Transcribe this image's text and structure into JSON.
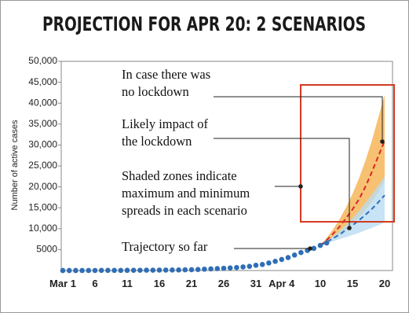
{
  "chart_data": {
    "type": "line",
    "title": "PROJECTION FOR APR 20: 2 SCENARIOS",
    "y_label": "Number of active cases",
    "categories": [
      "Mar 1",
      null,
      null,
      null,
      null,
      "6",
      null,
      null,
      null,
      null,
      "11",
      null,
      null,
      null,
      null,
      "16",
      null,
      null,
      null,
      null,
      "21",
      null,
      null,
      null,
      null,
      "26",
      null,
      null,
      null,
      null,
      "31",
      null,
      null,
      null,
      "Apr 4",
      null,
      null,
      null,
      null,
      null,
      "10",
      null,
      null,
      null,
      null,
      "15",
      null,
      null,
      null,
      null,
      "20"
    ],
    "ylim": [
      0,
      50000
    ],
    "yticks": [
      5000,
      {
        "value": 10000,
        "label": "10,000"
      },
      {
        "value": 15000,
        "label": "15,000"
      },
      {
        "value": 20000,
        "label": "20,000"
      },
      {
        "value": 25000,
        "label": "25,000"
      },
      {
        "value": 30000,
        "label": "30,000"
      },
      {
        "value": 35000,
        "label": "35,000"
      },
      {
        "value": 40000,
        "label": "40,000"
      },
      {
        "value": 45000,
        "label": "45,000"
      },
      {
        "value": 50000,
        "label": "50,000"
      }
    ],
    "bands": [
      {
        "color": "#f5b24e",
        "max": [
          null,
          null,
          null,
          null,
          null,
          null,
          null,
          null,
          null,
          null,
          null,
          null,
          null,
          null,
          null,
          null,
          null,
          null,
          null,
          null,
          null,
          null,
          null,
          null,
          null,
          null,
          null,
          null,
          null,
          null,
          null,
          null,
          null,
          null,
          null,
          null,
          null,
          null,
          null,
          null,
          6000,
          7800,
          9900,
          12300,
          15100,
          18300,
          22000,
          26200,
          31000,
          36500,
          42000
        ],
        "min": [
          null,
          null,
          null,
          null,
          null,
          null,
          null,
          null,
          null,
          null,
          null,
          null,
          null,
          null,
          null,
          null,
          null,
          null,
          null,
          null,
          null,
          null,
          null,
          null,
          null,
          null,
          null,
          null,
          null,
          null,
          null,
          null,
          null,
          null,
          null,
          null,
          null,
          null,
          null,
          null,
          6000,
          6800,
          7700,
          8700,
          9900,
          11200,
          12700,
          14400,
          16400,
          18800,
          21500
        ]
      },
      {
        "color": "#b9dcf3",
        "max": [
          null,
          null,
          null,
          null,
          null,
          null,
          null,
          null,
          null,
          null,
          null,
          null,
          null,
          null,
          null,
          null,
          null,
          null,
          null,
          null,
          null,
          null,
          null,
          null,
          null,
          null,
          null,
          null,
          null,
          null,
          null,
          null,
          null,
          null,
          null,
          null,
          null,
          null,
          null,
          null,
          6000,
          7000,
          8200,
          9500,
          10900,
          12500,
          14200,
          16100,
          18200,
          20300,
          22500
        ],
        "min": [
          null,
          null,
          null,
          null,
          null,
          null,
          null,
          null,
          null,
          null,
          null,
          null,
          null,
          null,
          null,
          null,
          null,
          null,
          null,
          null,
          null,
          null,
          null,
          null,
          null,
          null,
          null,
          null,
          null,
          null,
          null,
          null,
          null,
          null,
          null,
          null,
          null,
          null,
          null,
          null,
          6000,
          6500,
          7000,
          7500,
          8000,
          8500,
          9000,
          9600,
          10200,
          10800,
          11500
        ]
      }
    ],
    "series": [
      {
        "color": "#2f6eb5",
        "style": "dots",
        "values": [
          3,
          3,
          3,
          3,
          5,
          20,
          28,
          30,
          35,
          40,
          50,
          60,
          70,
          75,
          80,
          100,
          110,
          125,
          140,
          170,
          200,
          240,
          330,
          400,
          470,
          540,
          620,
          720,
          850,
          1000,
          1250,
          1450,
          1800,
          2200,
          2650,
          3100,
          3700,
          4300,
          4800,
          5300,
          6000,
          6600,
          null,
          null,
          null,
          null,
          null,
          null,
          null,
          null,
          null
        ]
      },
      {
        "color": "#d7262b",
        "style": "dashed",
        "values": [
          null,
          null,
          null,
          null,
          null,
          null,
          null,
          null,
          null,
          null,
          null,
          null,
          null,
          null,
          null,
          null,
          null,
          null,
          null,
          null,
          null,
          null,
          null,
          null,
          null,
          null,
          null,
          null,
          null,
          null,
          null,
          null,
          null,
          null,
          null,
          null,
          null,
          null,
          null,
          null,
          6000,
          7300,
          8800,
          10500,
          12500,
          14600,
          17000,
          20000,
          23500,
          27300,
          31000
        ]
      },
      {
        "color": "#2f6eb5",
        "style": "dashed",
        "values": [
          null,
          null,
          null,
          null,
          null,
          null,
          null,
          null,
          null,
          null,
          null,
          null,
          null,
          null,
          null,
          null,
          null,
          null,
          null,
          null,
          null,
          null,
          null,
          null,
          null,
          null,
          null,
          null,
          null,
          null,
          null,
          null,
          null,
          null,
          null,
          null,
          null,
          null,
          null,
          null,
          6000,
          6800,
          7700,
          8600,
          9700,
          10800,
          12000,
          13300,
          14700,
          16300,
          18000
        ]
      }
    ],
    "annotations": [
      {
        "lines": [
          "In case there was",
          "no lockdown"
        ]
      },
      {
        "lines": [
          "Likely impact of",
          "the lockdown"
        ]
      },
      {
        "lines": [
          "Shaded zones indicate",
          "maximum and minimum",
          "spreads in each scenario"
        ]
      },
      {
        "lines": [
          "Trajectory so far"
        ]
      }
    ]
  }
}
